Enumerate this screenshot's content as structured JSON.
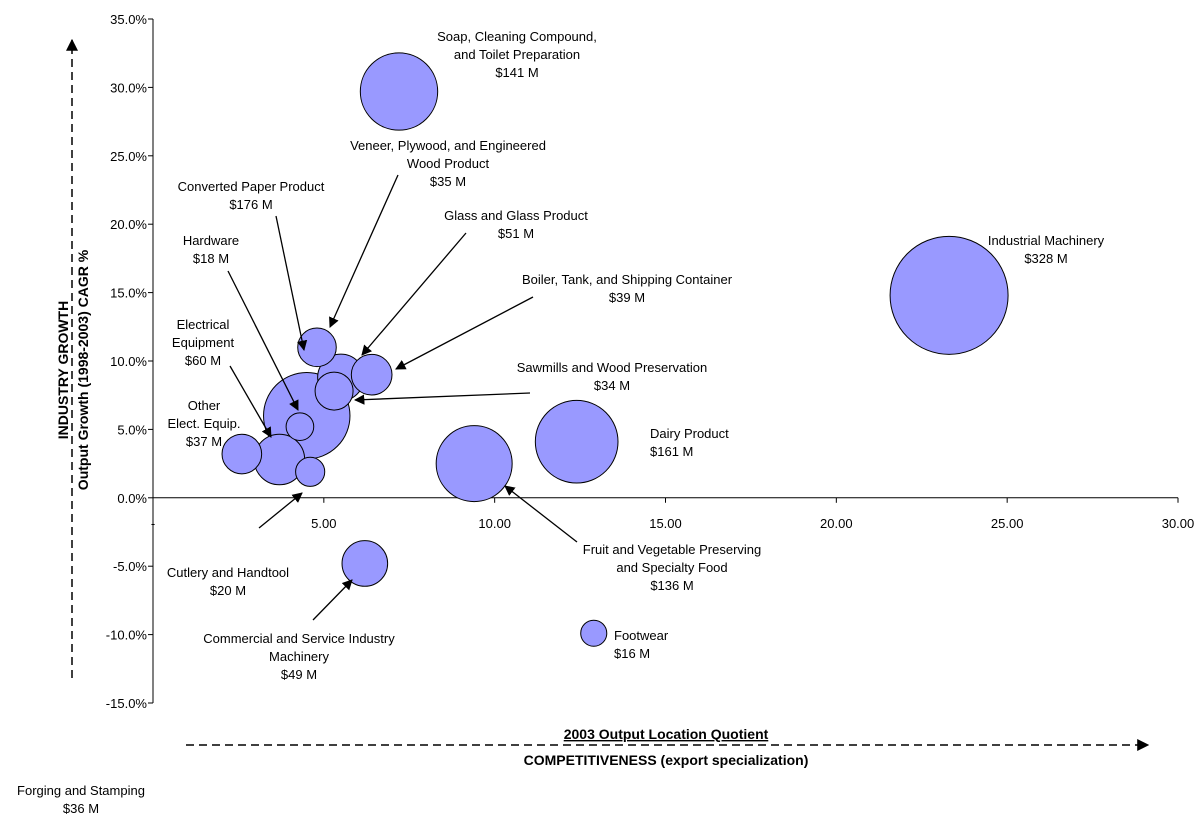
{
  "chart_data": {
    "type": "bubble",
    "xlabel": "2003 Output Location Quotient",
    "xlabel_secondary": "COMPETITIVENESS (export specialization)",
    "ylabel": "INDUSTRY GROWTH",
    "ylabel_secondary": "Output Growth (1998-2003) CAGR %",
    "xlim": [
      0,
      30
    ],
    "ylim": [
      -0.15,
      0.35
    ],
    "x_ticks": [
      {
        "value": 0,
        "label": "-"
      },
      {
        "value": 5,
        "label": "5.00"
      },
      {
        "value": 10,
        "label": "10.00"
      },
      {
        "value": 15,
        "label": "15.00"
      },
      {
        "value": 20,
        "label": "20.00"
      },
      {
        "value": 25,
        "label": "25.00"
      },
      {
        "value": 30,
        "label": "30.00"
      }
    ],
    "y_ticks": [
      {
        "value": 0.35,
        "label": "35.0%"
      },
      {
        "value": 0.3,
        "label": "30.0%"
      },
      {
        "value": 0.25,
        "label": "25.0%"
      },
      {
        "value": 0.2,
        "label": "20.0%"
      },
      {
        "value": 0.15,
        "label": "15.0%"
      },
      {
        "value": 0.1,
        "label": "10.0%"
      },
      {
        "value": 0.05,
        "label": "5.0%"
      },
      {
        "value": 0.0,
        "label": "0.0%"
      },
      {
        "value": -0.05,
        "label": "-5.0%"
      },
      {
        "value": -0.1,
        "label": "-10.0%"
      },
      {
        "value": -0.15,
        "label": "-15.0%"
      }
    ],
    "bubble_color": "#9999ff",
    "grid": false,
    "points": [
      {
        "name": "Soap, Cleaning Compound, and Toilet Preparation",
        "label_lines": [
          "Soap, Cleaning Compound,",
          "and Toilet Preparation",
          "$141 M"
        ],
        "x": 7.2,
        "y": 0.297,
        "size": 141
      },
      {
        "name": "Industrial Machinery",
        "label_lines": [
          "Industrial Machinery",
          "$328 M"
        ],
        "x": 23.3,
        "y": 0.148,
        "size": 328
      },
      {
        "name": "Veneer, Plywood, and Engineered Wood Product",
        "label_lines": [
          "Veneer, Plywood, and Engineered",
          "Wood Product",
          "$35 M"
        ],
        "x": 4.8,
        "y": 0.11,
        "size": 35
      },
      {
        "name": "Glass and Glass Product",
        "label_lines": [
          "Glass and Glass Product",
          "$51 M"
        ],
        "x": 5.5,
        "y": 0.088,
        "size": 51
      },
      {
        "name": "Boiler, Tank, and Shipping Container",
        "label_lines": [
          "Boiler, Tank, and Shipping Container",
          "$39 M"
        ],
        "x": 6.4,
        "y": 0.09,
        "size": 39
      },
      {
        "name": "Sawmills and Wood Preservation",
        "label_lines": [
          "Sawmills and Wood Preservation",
          "$34 M"
        ],
        "x": 5.3,
        "y": 0.078,
        "size": 34
      },
      {
        "name": "Converted Paper Product",
        "label_lines": [
          "Converted Paper Product",
          "$176 M"
        ],
        "x": 4.5,
        "y": 0.06,
        "size": 176
      },
      {
        "name": "Hardware",
        "label_lines": [
          "Hardware",
          "$18 M"
        ],
        "x": 4.3,
        "y": 0.052,
        "size": 18
      },
      {
        "name": "Electrical Equipment",
        "label_lines": [
          "Electrical",
          "Equipment",
          "$60 M"
        ],
        "x": 3.7,
        "y": 0.028,
        "size": 60
      },
      {
        "name": "Other Elect. Equip.",
        "label_lines": [
          "Other",
          "Elect. Equip.",
          "$37 M"
        ],
        "x": 2.6,
        "y": 0.032,
        "size": 37
      },
      {
        "name": "Cutlery and Handtool",
        "label_lines": [
          "Cutlery and Handtool",
          "$20 M"
        ],
        "x": 4.6,
        "y": 0.019,
        "size": 20
      },
      {
        "name": "Dairy Product",
        "label_lines": [
          "Dairy Product",
          "$161 M"
        ],
        "x": 12.4,
        "y": 0.041,
        "size": 161
      },
      {
        "name": "Fruit and Vegetable Preserving and Specialty Food",
        "label_lines": [
          "Fruit and Vegetable Preserving",
          "and Specialty Food",
          "$136 M"
        ],
        "x": 9.4,
        "y": 0.025,
        "size": 136
      },
      {
        "name": "Commercial and Service Industry Machinery",
        "label_lines": [
          "Commercial and Service Industry",
          "Machinery",
          "$49 M"
        ],
        "x": 6.2,
        "y": -0.048,
        "size": 49
      },
      {
        "name": "Footwear",
        "label_lines": [
          "Footwear",
          "$16 M"
        ],
        "x": 12.9,
        "y": -0.099,
        "size": 16
      },
      {
        "name": "Forging and Stamping",
        "label_lines": [
          "Forging and Stamping",
          "$36 M"
        ],
        "x": null,
        "y": null,
        "size": 36
      }
    ]
  }
}
